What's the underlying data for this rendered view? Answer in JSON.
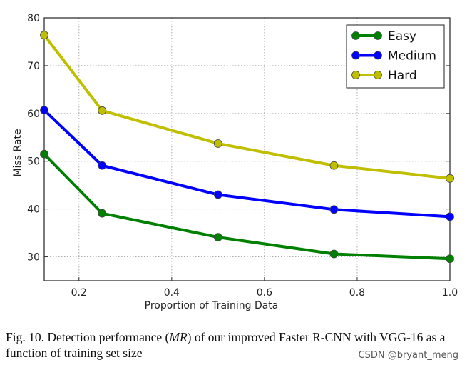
{
  "chart_data": {
    "type": "line",
    "xlabel": "Proportion of Training Data",
    "ylabel": "Miss Rate",
    "xlim": [
      0.125,
      1.0
    ],
    "ylim": [
      25,
      80
    ],
    "xticks": [
      "0.2",
      "0.4",
      "0.6",
      "0.8",
      "1.0"
    ],
    "yticks": [
      "30",
      "40",
      "50",
      "60",
      "70",
      "80"
    ],
    "grid": true,
    "legend_position": "top-right",
    "x": [
      0.125,
      0.25,
      0.5,
      0.75,
      1.0
    ],
    "series": [
      {
        "name": "Easy",
        "color": "#008000",
        "values": [
          51.5,
          39.1,
          34.1,
          30.6,
          29.6
        ]
      },
      {
        "name": "Medium",
        "color": "#0000ff",
        "values": [
          60.7,
          49.1,
          43.0,
          39.9,
          38.4
        ]
      },
      {
        "name": "Hard",
        "color": "#bfbf00",
        "values": [
          76.4,
          60.6,
          53.7,
          49.1,
          46.4
        ]
      }
    ]
  },
  "caption": {
    "prefix": "Fig. 10.  Detection performance (",
    "math": "MR",
    "suffix": ") of our improved Faster R-CNN with VGG-16 as a function of training set size"
  },
  "watermark": "CSDN @bryant_meng"
}
